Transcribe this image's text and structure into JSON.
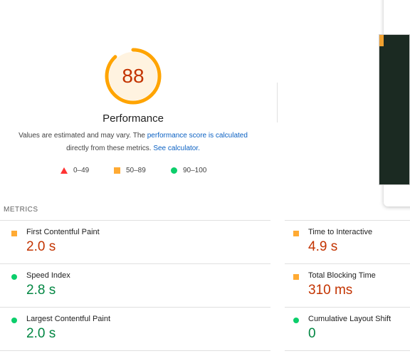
{
  "gauge": {
    "score": "88",
    "score_fraction": 0.88,
    "label": "Performance",
    "color": "#ffa400"
  },
  "description": {
    "prefix": "Values are estimated and may vary. The ",
    "score_link": "performance score is calculated",
    "middle": "directly from these metrics. ",
    "calc_link": "See calculator."
  },
  "legend": {
    "fail": "0–49",
    "average": "50–89",
    "pass": "90–100"
  },
  "metrics": {
    "title": "METRICS",
    "fcp": {
      "name": "First Contentful Paint",
      "value": "2.0 s",
      "rating": "average"
    },
    "tti": {
      "name": "Time to Interactive",
      "value": "4.9 s",
      "rating": "average"
    },
    "si": {
      "name": "Speed Index",
      "value": "2.8 s",
      "rating": "pass"
    },
    "tbt": {
      "name": "Total Blocking Time",
      "value": "310 ms",
      "rating": "average"
    },
    "lcp": {
      "name": "Largest Contentful Paint",
      "value": "2.0 s",
      "rating": "pass"
    },
    "cls": {
      "name": "Cumulative Layout Shift",
      "value": "0",
      "rating": "pass"
    }
  },
  "colors": {
    "fail": "#ff3333",
    "average": "#ffaa33",
    "pass": "#0cce6b",
    "average_text": "#c33300",
    "pass_text": "#018642",
    "link": "#0b61c3"
  }
}
